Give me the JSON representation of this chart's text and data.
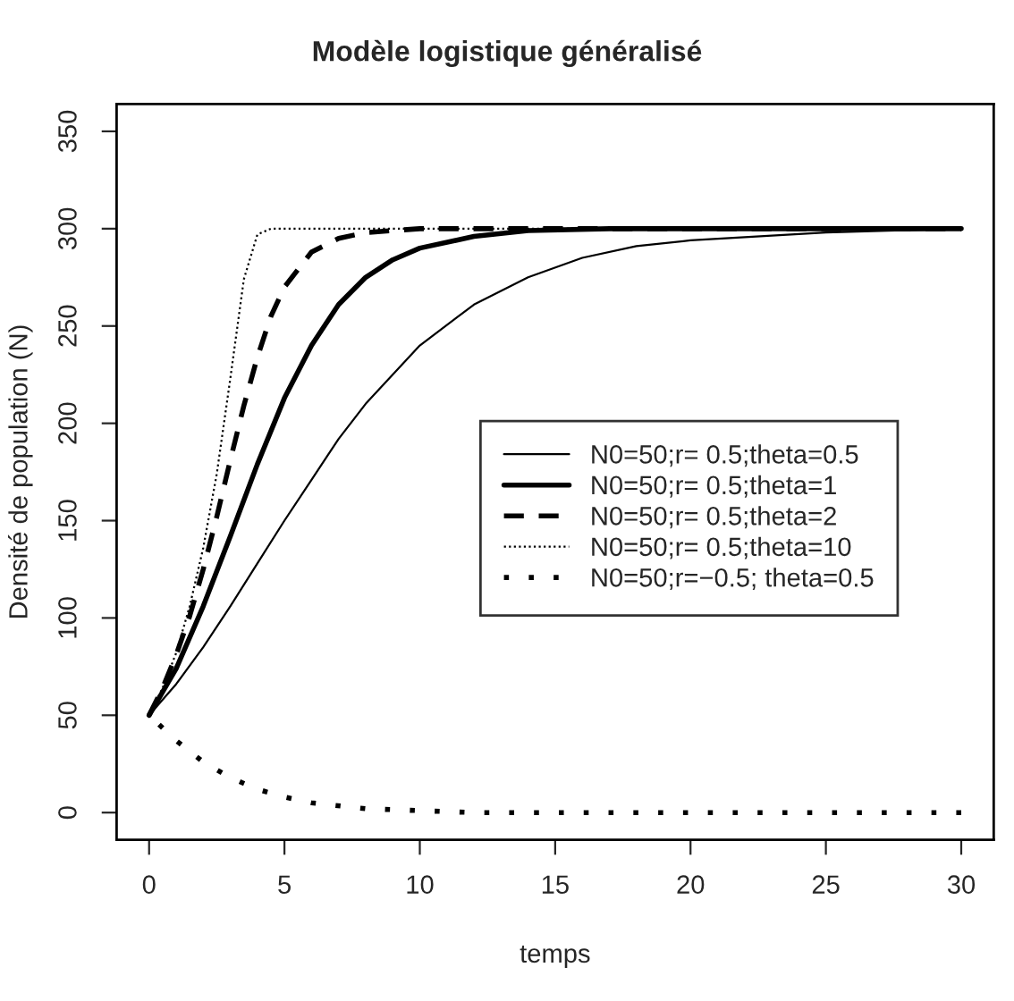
{
  "chart_data": {
    "type": "line",
    "title": "Modèle logistique généralisé",
    "xlabel": "temps",
    "ylabel": "Densité de population (N)",
    "xlim": [
      -1.2,
      31.2
    ],
    "ylim": [
      -14,
      364
    ],
    "xticks": [
      0,
      5,
      10,
      15,
      20,
      25,
      30
    ],
    "yticks": [
      0,
      50,
      100,
      150,
      200,
      250,
      300,
      350
    ],
    "grid": false,
    "legend": "right",
    "series": [
      {
        "name": "N0=50;r= 0.5;theta=0.5",
        "color": "#000000",
        "line_style": "solid",
        "x": [
          0,
          1,
          2,
          3,
          4,
          5,
          6,
          7,
          8,
          10,
          12,
          14,
          16,
          18,
          20,
          25,
          30
        ],
        "values": [
          50,
          66,
          85,
          106,
          128,
          150,
          171,
          192,
          210,
          240,
          261,
          275,
          285,
          291,
          294,
          298,
          300
        ]
      },
      {
        "name": "N0=50;r= 0.5;theta=1",
        "color": "#000000",
        "line_style": "solid",
        "x": [
          0,
          1,
          2,
          3,
          4,
          5,
          6,
          7,
          8,
          9,
          10,
          12,
          14,
          17,
          20,
          30
        ],
        "values": [
          50,
          74,
          106,
          142,
          179,
          213,
          240,
          261,
          275,
          284,
          290,
          296,
          299,
          300,
          300,
          300
        ]
      },
      {
        "name": "N0=50;r= 0.5;theta=2",
        "color": "#000000",
        "line_style": "dashed",
        "x": [
          0,
          0.5,
          1,
          1.5,
          2,
          2.5,
          3,
          3.5,
          4,
          4.5,
          5,
          6,
          7,
          8,
          10,
          30
        ],
        "values": [
          50,
          64,
          81,
          101,
          125,
          152,
          181,
          209,
          234,
          255,
          270,
          288,
          295,
          298,
          300,
          300
        ]
      },
      {
        "name": "N0=50;r= 0.5;theta=10",
        "color": "#000000",
        "line_style": "dotted",
        "x": [
          0,
          0.5,
          1,
          1.5,
          2,
          2.5,
          3,
          3.5,
          4,
          4.5,
          5,
          30
        ],
        "values": [
          50,
          64,
          82,
          106,
          136,
          174,
          223,
          274,
          297,
          300,
          300,
          300
        ]
      },
      {
        "name": "N0=50;r=−0.5; theta=0.5",
        "color": "#000000",
        "line_style": "dotted",
        "x": [
          0,
          1,
          2,
          3,
          4,
          5,
          6,
          8,
          10,
          12,
          15,
          20,
          30
        ],
        "values": [
          50,
          37,
          26,
          18,
          12,
          8,
          5,
          2,
          1,
          0,
          0,
          0,
          0
        ]
      }
    ]
  }
}
